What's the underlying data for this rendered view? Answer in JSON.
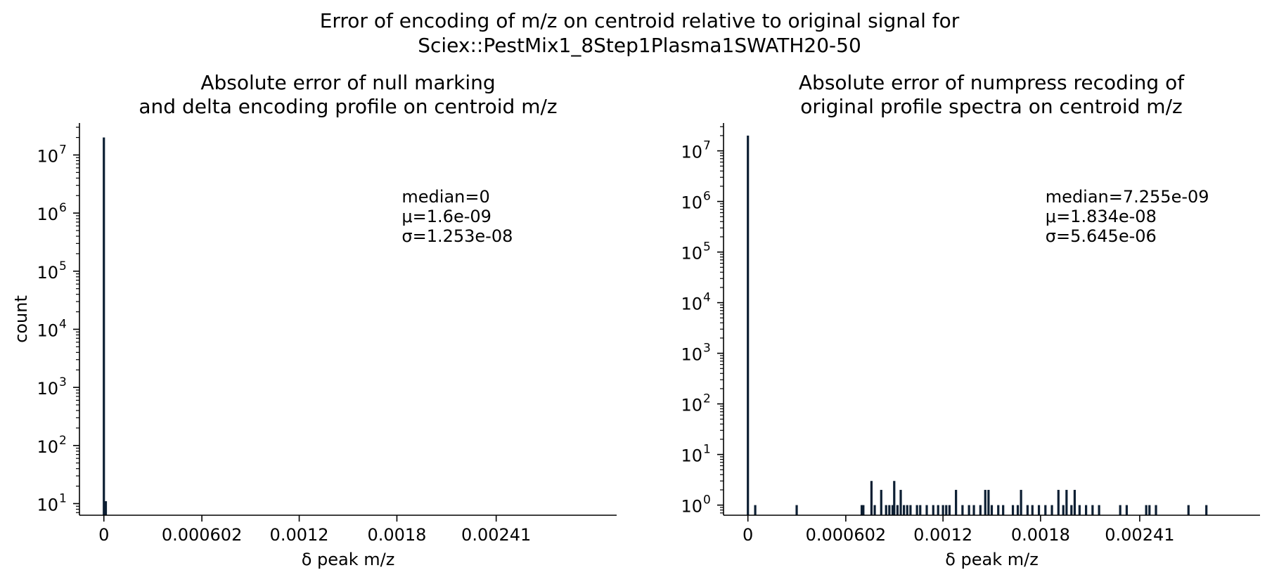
{
  "figure": {
    "suptitle_line1": "Error of encoding of m/z on centroid relative to original signal for",
    "suptitle_line2": "Sciex::PestMix1_8Step1Plasma1SWATH20-50",
    "bar_color": "#0d1f33"
  },
  "chart_data": [
    {
      "type": "bar",
      "title": [
        "Absolute error of null marking",
        "and delta encoding profile on centroid m/z"
      ],
      "xlabel": "δ peak m/z",
      "ylabel": "count",
      "yscale": "log",
      "xlim": [
        -0.00015,
        0.00315
      ],
      "ylim_exponent": [
        0.8,
        7.55
      ],
      "x_ticks": [
        0,
        0.000602,
        0.0012,
        0.0018,
        0.00241
      ],
      "x_tick_labels": [
        "0",
        "0.000602",
        "0.0012",
        "0.0018",
        "0.00241"
      ],
      "y_ticks": [
        1,
        2,
        3,
        4,
        5,
        6,
        7
      ],
      "y_tick_labels": [
        "10",
        "10",
        "10",
        "10",
        "10",
        "10",
        "10"
      ],
      "y_tick_exponents": [
        "1",
        "2",
        "3",
        "4",
        "5",
        "6",
        "7"
      ],
      "stats": [
        "median=0",
        "μ=1.6e-09",
        "σ=1.253e-08"
      ],
      "bins": [
        {
          "x": 0.0,
          "count": 20000000
        },
        {
          "x": 1.2e-05,
          "count": 11
        }
      ]
    },
    {
      "type": "bar",
      "title": [
        "Absolute error of numpress recoding of",
        "original profile spectra on centroid m/z"
      ],
      "xlabel": "δ peak m/z",
      "ylabel": "",
      "yscale": "log",
      "xlim": [
        -0.00015,
        0.00315
      ],
      "ylim_exponent": [
        -0.2,
        7.55
      ],
      "x_ticks": [
        0,
        0.000602,
        0.0012,
        0.0018,
        0.00241
      ],
      "x_tick_labels": [
        "0",
        "0.000602",
        "0.0012",
        "0.0018",
        "0.00241"
      ],
      "y_ticks": [
        0,
        1,
        2,
        3,
        4,
        5,
        6,
        7
      ],
      "y_tick_labels": [
        "10",
        "10",
        "10",
        "10",
        "10",
        "10",
        "10",
        "10"
      ],
      "y_tick_exponents": [
        "0",
        "1",
        "2",
        "3",
        "4",
        "5",
        "6",
        "7"
      ],
      "stats": [
        "median=7.255e-09",
        "μ=1.834e-08",
        "σ=5.645e-06"
      ],
      "bins": [
        {
          "x": 0.0,
          "count": 20000000
        },
        {
          "x": 4.5e-05,
          "count": 1
        },
        {
          "x": 0.0003,
          "count": 1
        },
        {
          "x": 0.0007,
          "count": 1
        },
        {
          "x": 0.00071,
          "count": 1
        },
        {
          "x": 0.00076,
          "count": 3
        },
        {
          "x": 0.00078,
          "count": 1
        },
        {
          "x": 0.00082,
          "count": 2
        },
        {
          "x": 0.00085,
          "count": 1
        },
        {
          "x": 0.00087,
          "count": 1
        },
        {
          "x": 0.00089,
          "count": 1
        },
        {
          "x": 0.0009,
          "count": 3
        },
        {
          "x": 0.00092,
          "count": 1
        },
        {
          "x": 0.00094,
          "count": 2
        },
        {
          "x": 0.00096,
          "count": 1
        },
        {
          "x": 0.00098,
          "count": 1
        },
        {
          "x": 0.001,
          "count": 1
        },
        {
          "x": 0.00104,
          "count": 1
        },
        {
          "x": 0.00106,
          "count": 1
        },
        {
          "x": 0.0011,
          "count": 1
        },
        {
          "x": 0.00114,
          "count": 1
        },
        {
          "x": 0.00117,
          "count": 1
        },
        {
          "x": 0.0012,
          "count": 1
        },
        {
          "x": 0.00122,
          "count": 1
        },
        {
          "x": 0.00124,
          "count": 1
        },
        {
          "x": 0.00128,
          "count": 2
        },
        {
          "x": 0.00132,
          "count": 1
        },
        {
          "x": 0.00136,
          "count": 1
        },
        {
          "x": 0.00139,
          "count": 1
        },
        {
          "x": 0.00143,
          "count": 1
        },
        {
          "x": 0.00146,
          "count": 2
        },
        {
          "x": 0.00148,
          "count": 2
        },
        {
          "x": 0.0015,
          "count": 1
        },
        {
          "x": 0.00154,
          "count": 1
        },
        {
          "x": 0.00157,
          "count": 1
        },
        {
          "x": 0.00163,
          "count": 1
        },
        {
          "x": 0.00166,
          "count": 1
        },
        {
          "x": 0.00168,
          "count": 2
        },
        {
          "x": 0.00172,
          "count": 1
        },
        {
          "x": 0.00175,
          "count": 1
        },
        {
          "x": 0.00179,
          "count": 1
        },
        {
          "x": 0.00183,
          "count": 1
        },
        {
          "x": 0.00187,
          "count": 1
        },
        {
          "x": 0.00191,
          "count": 2
        },
        {
          "x": 0.00194,
          "count": 1
        },
        {
          "x": 0.00196,
          "count": 2
        },
        {
          "x": 0.00199,
          "count": 1
        },
        {
          "x": 0.00201,
          "count": 2
        },
        {
          "x": 0.00204,
          "count": 1
        },
        {
          "x": 0.00208,
          "count": 1
        },
        {
          "x": 0.00212,
          "count": 1
        },
        {
          "x": 0.00216,
          "count": 1
        },
        {
          "x": 0.00229,
          "count": 1
        },
        {
          "x": 0.00233,
          "count": 1
        },
        {
          "x": 0.00245,
          "count": 1
        },
        {
          "x": 0.00247,
          "count": 1
        },
        {
          "x": 0.00251,
          "count": 1
        },
        {
          "x": 0.00271,
          "count": 1
        },
        {
          "x": 0.00282,
          "count": 1
        }
      ]
    }
  ]
}
